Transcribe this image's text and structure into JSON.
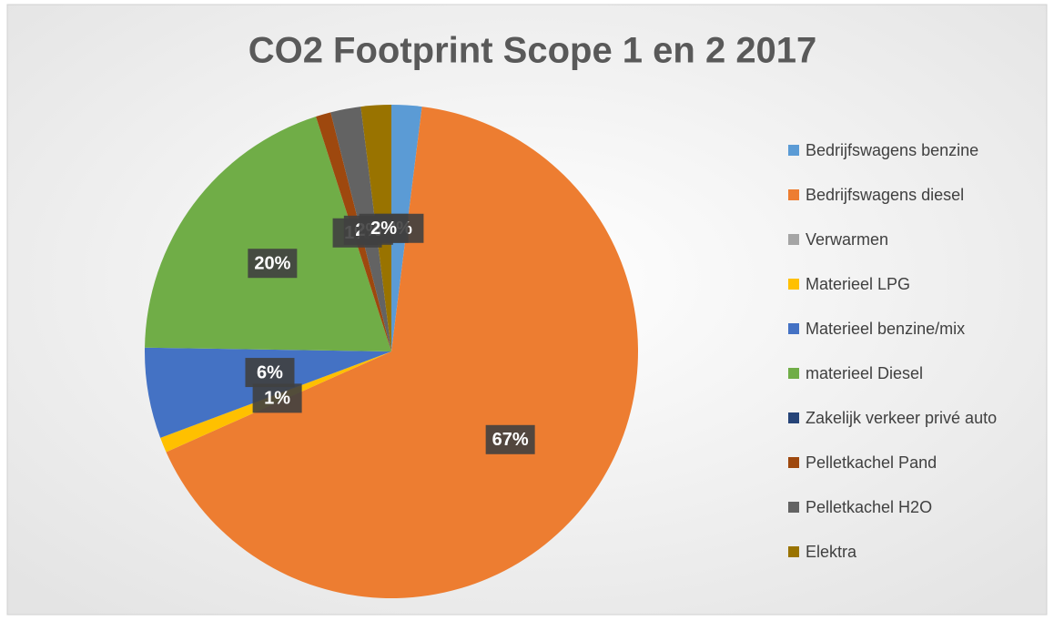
{
  "chart_data": {
    "type": "pie",
    "title": "CO2 Footprint Scope 1 en 2 2017",
    "categories": [
      "Bedrijfswagens benzine",
      "Bedrijfswagens diesel",
      "Verwarmen",
      "Materieel LPG",
      "Materieel benzine/mix",
      "materieel Diesel",
      "Zakelijk verkeer privé auto",
      "Pelletkachel Pand",
      "Pelletkachel H2O",
      "Elektra"
    ],
    "values": [
      2,
      67,
      0,
      1,
      6,
      20,
      0,
      1,
      2,
      2
    ],
    "value_labels": [
      "2%",
      "67%",
      null,
      "1%",
      "6%",
      "20%",
      null,
      "1%",
      "2%",
      "2%"
    ],
    "colors": [
      "#5b9bd5",
      "#ed7d31",
      "#a5a5a5",
      "#ffc000",
      "#4472c4",
      "#70ad47",
      "#264478",
      "#9e480e",
      "#636363",
      "#997300"
    ],
    "legend": "right"
  }
}
